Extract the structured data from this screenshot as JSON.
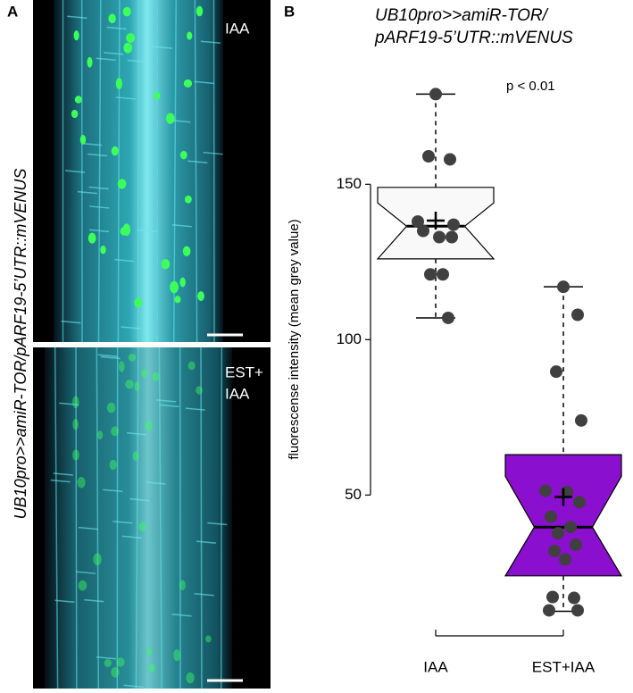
{
  "panel_a": {
    "label": "A",
    "side_label": "UB10pro>>amiR-TOR/pARF19-5’UTR::mVENUS",
    "images": [
      {
        "label_lines": [
          "IAA"
        ]
      },
      {
        "label_lines": [
          "EST+",
          "IAA"
        ]
      }
    ]
  },
  "chart_data": {
    "type": "box",
    "panel_label": "B",
    "title": [
      "UB10pro>>amiR-TOR/",
      "pARF19-5’UTR::mVENUS"
    ],
    "y_label": "fluorescense intensity (mean grey value)",
    "annotation": "p < 0.01",
    "categories": [
      "IAA",
      "EST+IAA"
    ],
    "ylim": [
      7,
      184
    ],
    "yticks": [
      50,
      100,
      150
    ],
    "point_color": "#404040",
    "boxes": [
      {
        "color": "#f9f9f9",
        "whisker_low": 107,
        "q1": 126,
        "notch_low": 126,
        "median": 136.5,
        "notch_high": 144,
        "q3": 149,
        "whisker_high": 179,
        "mean": 138.3,
        "points": [
          179,
          158,
          159,
          137,
          138,
          133,
          133,
          135,
          121,
          121,
          107
        ]
      },
      {
        "color": "#8a0fce",
        "whisker_low": 12.6,
        "q1": 24,
        "notch_low": 24,
        "median": 39.7,
        "notch_high": 56,
        "q3": 63,
        "whisker_high": 117,
        "mean": 49.4,
        "points": [
          117,
          108,
          89.7,
          74,
          51.4,
          51,
          47.7,
          43,
          39.7,
          37.7,
          34,
          32,
          29.3,
          17.2,
          16.9,
          12.9,
          12.9
        ]
      }
    ]
  }
}
